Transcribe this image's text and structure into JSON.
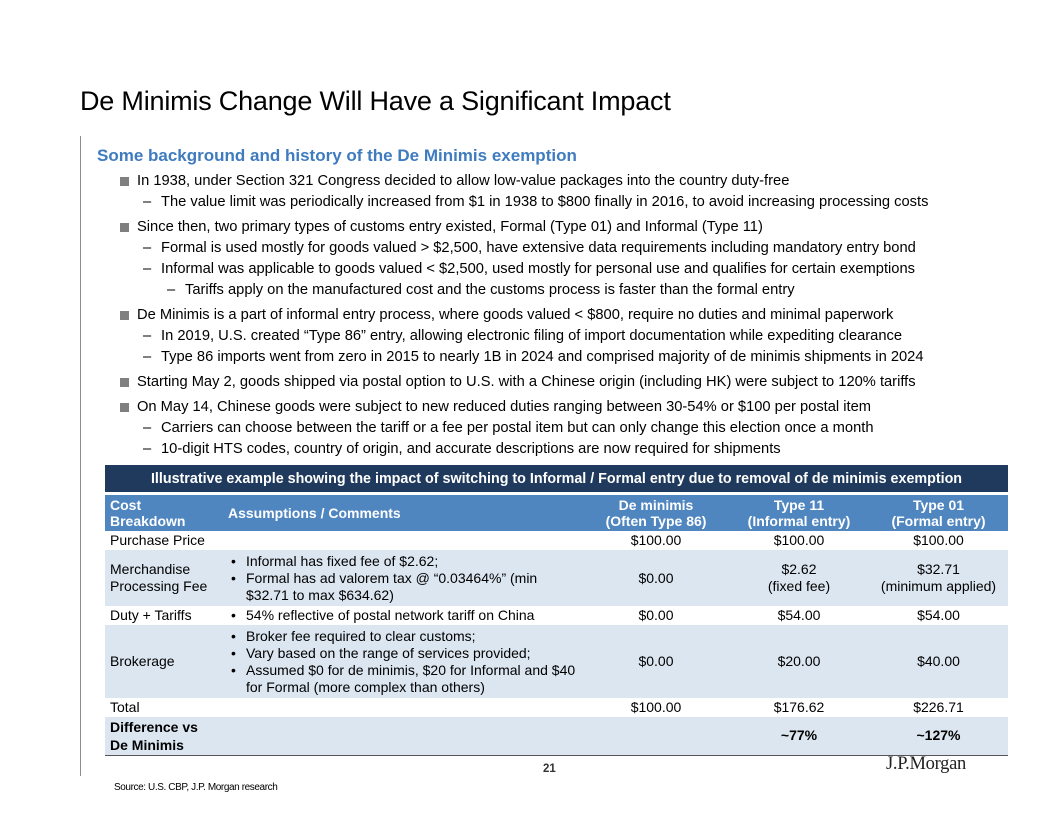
{
  "title": "De Minimis Change Will Have a Significant Impact",
  "subhead": "Some background and history of the De Minimis exemption",
  "bullets": [
    {
      "level": 1,
      "text": "In 1938, under Section 321 Congress decided to allow low-value packages into the country duty-free"
    },
    {
      "level": 2,
      "text": "The value limit was periodically increased from $1 in 1938 to $800 finally in 2016, to avoid increasing processing costs"
    },
    {
      "level": 1,
      "text": "Since then, two primary types of customs entry existed, Formal (Type 01) and Informal (Type 11)"
    },
    {
      "level": 2,
      "text": "Formal is used mostly for goods valued > $2,500, have extensive data requirements including mandatory entry bond"
    },
    {
      "level": 2,
      "text": "Informal was applicable to goods valued < $2,500, used mostly for personal use and qualifies for certain exemptions"
    },
    {
      "level": 3,
      "text": "Tariffs apply on the manufactured cost and the customs process is faster than the formal entry"
    },
    {
      "level": 1,
      "text": "De Minimis is a part of informal entry process, where goods valued < $800, require no duties and minimal paperwork"
    },
    {
      "level": 2,
      "text": "In 2019, U.S. created “Type 86” entry, allowing electronic filing of import documentation while expediting clearance"
    },
    {
      "level": 2,
      "text": "Type 86 imports went from zero in 2015 to nearly 1B in 2024 and comprised majority of de minimis shipments in 2024"
    },
    {
      "level": 1,
      "text": "Starting May 2, goods shipped via postal option to U.S. with a Chinese origin (including HK) were subject to 120% tariffs"
    },
    {
      "level": 1,
      "text": "On May 14, Chinese goods were subject to new reduced duties ranging between 30-54% or $100 per postal item"
    },
    {
      "level": 2,
      "text": "Carriers can choose between the tariff or a fee per postal item but can only change this election once a month"
    },
    {
      "level": 2,
      "text": "10-digit HTS codes, country of origin, and accurate descriptions are now required for shipments"
    }
  ],
  "table": {
    "caption": "Illustrative example showing the impact of switching to Informal / Formal entry due to removal of de minimis exemption",
    "headers": {
      "cost_l1": "Cost",
      "cost_l2": "Breakdown",
      "assumptions": "Assumptions / Comments",
      "deminimis_l1": "De minimis",
      "deminimis_l2": "(Often Type 86)",
      "type11_l1": "Type 11",
      "type11_l2": "(Informal entry)",
      "type01_l1": "Type 01",
      "type01_l2": "(Formal entry)"
    },
    "rows": {
      "purchase": {
        "label": "Purchase Price",
        "de_minimis": "$100.00",
        "type11": "$100.00",
        "type01": "$100.00"
      },
      "merchandise": {
        "label_l1": "Merchandise",
        "label_l2": "Processing Fee",
        "comments": [
          "Informal has fixed fee of $2.62;",
          "Formal has ad valorem tax @ “0.03464%” (min $32.71 to max $634.62)"
        ],
        "de_minimis": "$0.00",
        "type11": "$2.62",
        "type11_note": "(fixed fee)",
        "type01": "$32.71",
        "type01_note": "(minimum applied)"
      },
      "duty": {
        "label": "Duty + Tariffs",
        "comments": [
          "54% reflective of postal network tariff on China"
        ],
        "de_minimis": "$0.00",
        "type11": "$54.00",
        "type01": "$54.00"
      },
      "brokerage": {
        "label": "Brokerage",
        "comments": [
          "Broker fee required to clear customs;",
          "Vary based on the range of services provided;",
          "Assumed $0 for de minimis, $20 for Informal and $40 for Formal (more complex than others)"
        ],
        "de_minimis": "$0.00",
        "type11": "$20.00",
        "type01": "$40.00"
      },
      "total": {
        "label": "Total",
        "de_minimis": "$100.00",
        "type11": "$176.62",
        "type01": "$226.71"
      },
      "difference": {
        "label_l1": "Difference vs",
        "label_l2": "De Minimis",
        "type11": "~77%",
        "type01": "~127%"
      }
    }
  },
  "footer": {
    "page_number": "21",
    "logo": "J.P.Morgan",
    "source": "Source: U.S. CBP, J.P. Morgan research"
  },
  "colors": {
    "subhead": "#3e7bbf",
    "table_caption_bg": "#1f3a5c",
    "table_header_bg": "#4f86c0",
    "row_shade": "#dce6f1"
  }
}
